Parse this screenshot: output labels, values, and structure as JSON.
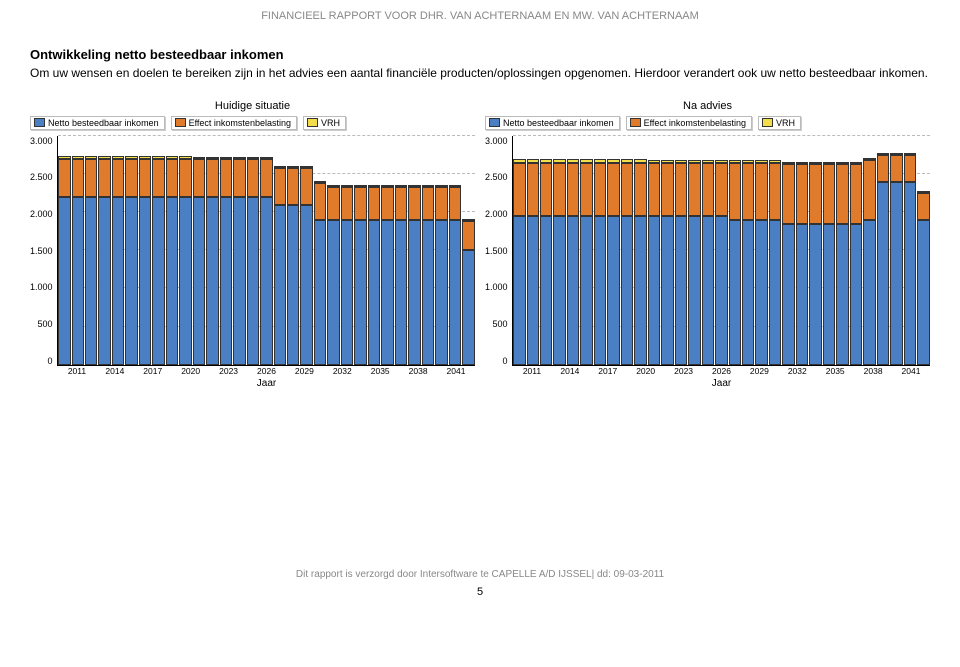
{
  "header": "FINANCIEEL RAPPORT VOOR DHR. VAN ACHTERNAAM EN MW. VAN ACHTERNAAM",
  "section_title": "Ontwikkeling netto besteedbaar inkomen",
  "intro": "Om uw wensen en doelen te bereiken zijn in het advies een aantal financiële producten/oplossingen opgenomen. Hierdoor verandert ook uw netto besteedbaar inkomen.",
  "legend_labels": [
    "Netto besteedbaar inkomen",
    "Effect inkomstenbelasting",
    "VRH"
  ],
  "series_colors": [
    "#4a7fc4",
    "#e07b2c",
    "#f2dd4a"
  ],
  "border_color": "#333333",
  "grid_color": "#bbbbbb",
  "bg_color": "#ffffff",
  "y_max": 3000,
  "y_ticks": [
    "0",
    "500",
    "1.000",
    "1.500",
    "2.000",
    "2.500",
    "3.000"
  ],
  "x_ticks": [
    "2011",
    "2014",
    "2017",
    "2020",
    "2023",
    "2026",
    "2029",
    "2032",
    "2035",
    "2038",
    "2041"
  ],
  "x_label": "Jaar",
  "charts": [
    {
      "title": "Huidige situatie",
      "years_count": 31,
      "series": {
        "netto": [
          2200,
          2200,
          2200,
          2200,
          2200,
          2200,
          2200,
          2200,
          2200,
          2200,
          2200,
          2200,
          2200,
          2200,
          2200,
          2200,
          2100,
          2100,
          2100,
          1900,
          1900,
          1900,
          1900,
          1900,
          1900,
          1900,
          1900,
          1900,
          1900,
          1900,
          1500
        ],
        "effect": [
          500,
          500,
          500,
          500,
          500,
          500,
          500,
          500,
          500,
          500,
          500,
          500,
          500,
          500,
          500,
          500,
          480,
          480,
          480,
          480,
          430,
          430,
          430,
          430,
          430,
          430,
          430,
          430,
          430,
          430,
          380
        ],
        "vrh": [
          30,
          30,
          30,
          30,
          30,
          30,
          30,
          30,
          30,
          30,
          25,
          25,
          25,
          25,
          25,
          25,
          25,
          25,
          25,
          25,
          20,
          20,
          20,
          20,
          20,
          20,
          20,
          20,
          20,
          20,
          20
        ]
      }
    },
    {
      "title": "Na advies",
      "years_count": 31,
      "series": {
        "netto": [
          1950,
          1950,
          1950,
          1950,
          1950,
          1950,
          1950,
          1950,
          1950,
          1950,
          1950,
          1950,
          1950,
          1950,
          1950,
          1950,
          1900,
          1900,
          1900,
          1900,
          1850,
          1850,
          1850,
          1850,
          1850,
          1850,
          1900,
          2400,
          2400,
          2400,
          1900
        ],
        "effect": [
          700,
          700,
          700,
          700,
          700,
          700,
          700,
          700,
          700,
          700,
          700,
          700,
          700,
          700,
          700,
          700,
          750,
          750,
          750,
          750,
          780,
          780,
          780,
          780,
          780,
          780,
          780,
          350,
          350,
          350,
          350
        ],
        "vrh": [
          40,
          40,
          40,
          40,
          40,
          40,
          40,
          40,
          40,
          40,
          35,
          35,
          35,
          35,
          35,
          35,
          35,
          35,
          35,
          35,
          30,
          30,
          30,
          30,
          30,
          30,
          30,
          30,
          30,
          30,
          30
        ]
      }
    }
  ],
  "footer_text": "Dit rapport is verzorgd door Intersoftware te CAPELLE A/D IJSSEL| dd: 09-03-2011",
  "page_number": "5"
}
